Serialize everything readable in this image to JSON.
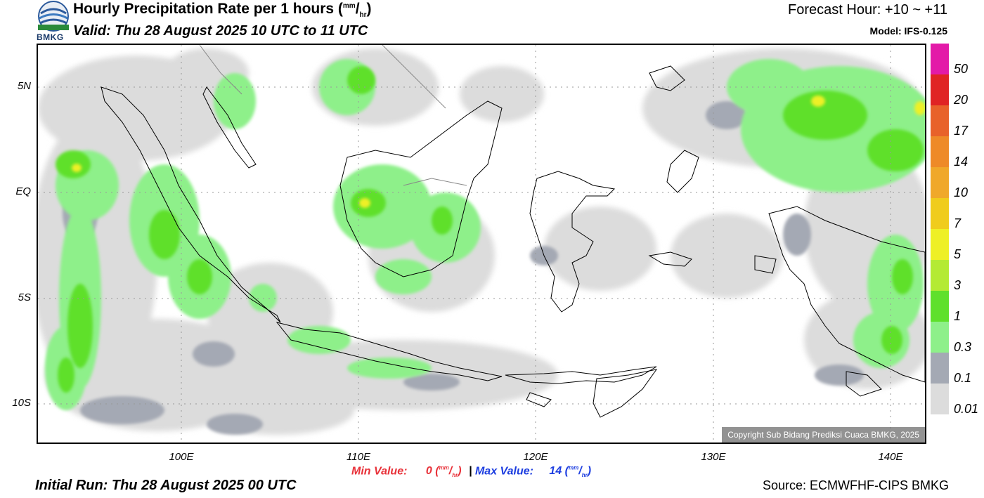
{
  "header": {
    "logo_text": "BMKG",
    "title_main": "Hourly Precipitation Rate per 1 hours (",
    "title_unit_num": "mm",
    "title_unit_den": "hr",
    "title_close": ")",
    "valid": "Valid: Thu 28 August 2025 10 UTC to 11 UTC",
    "forecast_hour": "Forecast Hour: +10 ~ +11",
    "model": "Model: IFS-0.125"
  },
  "map": {
    "lat_labels": [
      "5N",
      "EQ",
      "5S",
      "10S"
    ],
    "lon_labels": [
      "100E",
      "110E",
      "120E",
      "130E",
      "140E"
    ],
    "copyright": "Copyright Sub Bidang Prediksi Cuaca BMKG, 2025"
  },
  "colorbar": {
    "labels": [
      "50",
      "20",
      "17",
      "14",
      "10",
      "7",
      "5",
      "3",
      "1",
      "0.3",
      "0.1",
      "0.01"
    ],
    "colors": [
      "#e31aa8",
      "#e02424",
      "#e8622a",
      "#ee8a28",
      "#f0a82a",
      "#f0cc1c",
      "#eef026",
      "#b4ea34",
      "#5fe02c",
      "#8ef08a",
      "#a4a9b4",
      "#dcdcdc"
    ]
  },
  "footer": {
    "min_label": "Min Value:",
    "min_value": "0",
    "separator": "|",
    "max_label": "Max Value:",
    "max_value": "14",
    "unit_num": "mm",
    "unit_den": "hr",
    "initial_run": "Initial Run: Thu 28 August 2025 00 UTC",
    "source": "Source: ECMWFHF-CIPS BMKG"
  }
}
